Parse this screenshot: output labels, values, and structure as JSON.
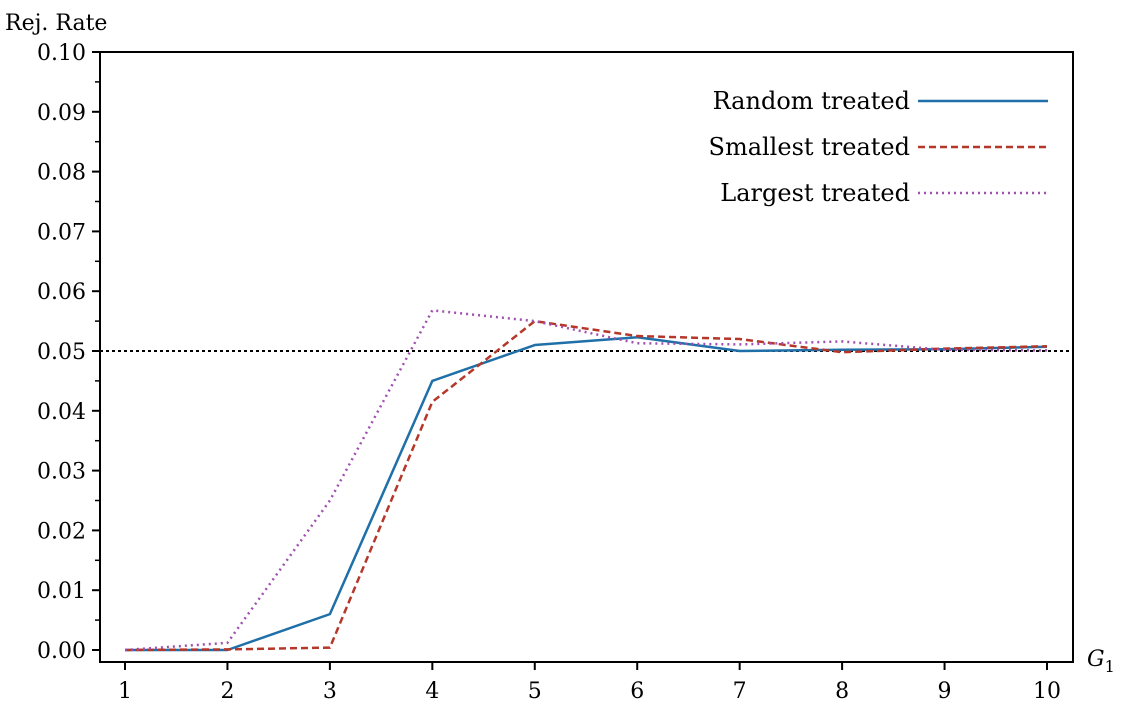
{
  "chart_data": {
    "type": "line",
    "title": "",
    "xlabel": "G",
    "xlabel_subscript": "1",
    "ylabel": "Rej. Rate",
    "xlim": [
      1,
      10
    ],
    "ylim": [
      0,
      0.1
    ],
    "x": [
      1,
      2,
      3,
      4,
      5,
      6,
      7,
      8,
      9,
      10
    ],
    "x_tick_labels": [
      "1",
      "2",
      "3",
      "4",
      "5",
      "6",
      "7",
      "8",
      "9",
      "10"
    ],
    "y_ticks": [
      0,
      0.01,
      0.02,
      0.03,
      0.04,
      0.05,
      0.06,
      0.07,
      0.08,
      0.09,
      0.1
    ],
    "y_tick_labels": [
      "0.00",
      "0.01",
      "0.02",
      "0.03",
      "0.04",
      "0.05",
      "0.06",
      "0.07",
      "0.08",
      "0.09",
      "0.10"
    ],
    "reference_line": {
      "y": 0.05,
      "style": "dotted",
      "color": "#000000"
    },
    "grid": false,
    "legend_position": "top-right",
    "series": [
      {
        "name": "Random treated",
        "values": [
          0.0,
          0.0,
          0.006,
          0.045,
          0.051,
          0.0523,
          0.05,
          0.0502,
          0.0503,
          0.0507
        ],
        "color": "#1f6fa8",
        "style": "solid"
      },
      {
        "name": "Smallest treated",
        "values": [
          0.0,
          0.0001,
          0.0004,
          0.0415,
          0.055,
          0.0525,
          0.052,
          0.0498,
          0.0504,
          0.0508
        ],
        "color": "#b5372a",
        "style": "dashed"
      },
      {
        "name": "Largest treated",
        "values": [
          0.0,
          0.0012,
          0.025,
          0.0568,
          0.055,
          0.0513,
          0.0511,
          0.0516,
          0.0502,
          0.0501
        ],
        "color": "#a050b0",
        "style": "dotted"
      }
    ]
  }
}
